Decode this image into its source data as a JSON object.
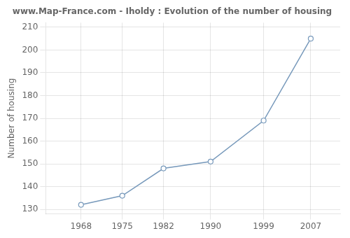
{
  "chart_data": {
    "type": "line",
    "title": "www.Map-France.com - Iholdy : Evolution of the number of housing",
    "ylabel": "Number of housing",
    "x": [
      1968,
      1975,
      1982,
      1990,
      1999,
      2007
    ],
    "values": [
      132,
      136,
      148,
      151,
      169,
      205
    ],
    "color": "#7799bb",
    "marker": "circle",
    "xlim": [
      1962,
      2012
    ],
    "ylim": [
      128,
      212
    ],
    "xticks": [
      1968,
      1975,
      1982,
      1990,
      1999,
      2007
    ],
    "yticks": [
      130,
      140,
      150,
      160,
      170,
      180,
      190,
      200,
      210
    ],
    "grid": true
  }
}
